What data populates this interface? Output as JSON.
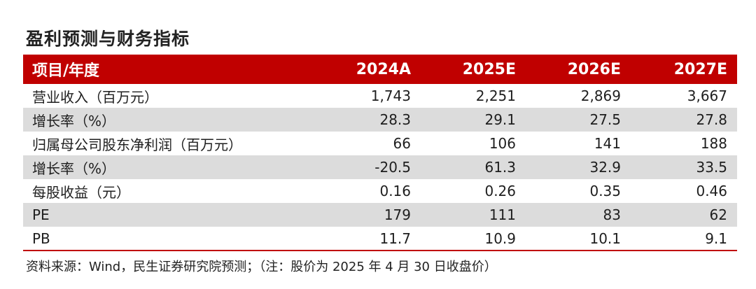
{
  "title": "盈利预测与财务指标",
  "table": {
    "headers": [
      "项目/年度",
      "2024A",
      "2025E",
      "2026E",
      "2027E"
    ],
    "rows": [
      {
        "label": "营业收入（百万元）",
        "values": [
          "1,743",
          "2,251",
          "2,869",
          "3,667"
        ]
      },
      {
        "label": "增长率（%）",
        "values": [
          "28.3",
          "29.1",
          "27.5",
          "27.8"
        ]
      },
      {
        "label": "归属母公司股东净利润（百万元）",
        "values": [
          "66",
          "106",
          "141",
          "188"
        ]
      },
      {
        "label": "增长率（%）",
        "values": [
          "-20.5",
          "61.3",
          "32.9",
          "33.5"
        ]
      },
      {
        "label": "每股收益（元）",
        "values": [
          "0.16",
          "0.26",
          "0.35",
          "0.46"
        ]
      },
      {
        "label": "PE",
        "values": [
          "179",
          "111",
          "83",
          "62"
        ]
      },
      {
        "label": "PB",
        "values": [
          "11.7",
          "10.9",
          "10.1",
          "9.1"
        ]
      }
    ]
  },
  "source": "资料来源：Wind，民生证券研究院预测；（注：股价为 2025 年 4 月 30 日收盘价）",
  "colors": {
    "header_bg": "#c00000",
    "alt_row_bg": "#dcdcdc"
  }
}
